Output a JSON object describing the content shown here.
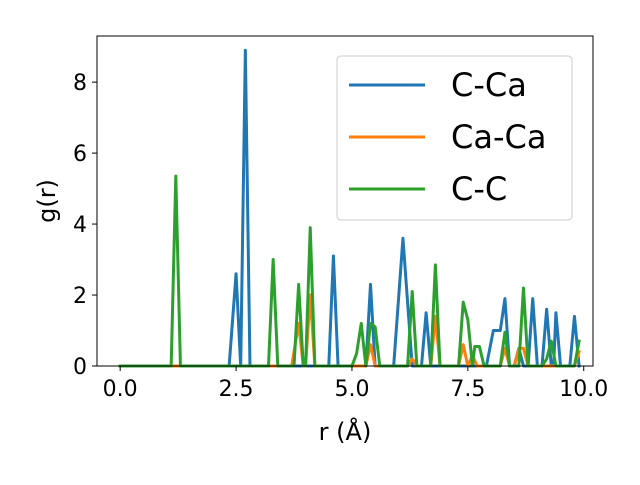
{
  "chart_data": {
    "type": "line",
    "title": "",
    "xlabel": "r (Å)",
    "ylabel": "g(r)",
    "xlim": [
      -0.5,
      10.2
    ],
    "ylim": [
      0,
      9.3
    ],
    "xticks": [
      0.0,
      2.5,
      5.0,
      7.5,
      10.0
    ],
    "xtick_labels": [
      "0.0",
      "2.5",
      "5.0",
      "7.5",
      "10.0"
    ],
    "yticks": [
      0,
      2,
      4,
      6,
      8
    ],
    "ytick_labels": [
      "0",
      "2",
      "4",
      "6",
      "8"
    ],
    "grid": false,
    "legend_position": "top-right",
    "series": [
      {
        "name": "C-Ca",
        "color": "#1f77b4",
        "points": [
          [
            0.0,
            0
          ],
          [
            2.35,
            0
          ],
          [
            2.5,
            2.6
          ],
          [
            2.6,
            0
          ],
          [
            2.7,
            8.9
          ],
          [
            2.8,
            0
          ],
          [
            4.5,
            0
          ],
          [
            4.6,
            3.1
          ],
          [
            4.7,
            0
          ],
          [
            5.3,
            0
          ],
          [
            5.4,
            2.3
          ],
          [
            5.5,
            0
          ],
          [
            5.9,
            0
          ],
          [
            6.1,
            3.6
          ],
          [
            6.3,
            0
          ],
          [
            6.5,
            0
          ],
          [
            6.6,
            1.5
          ],
          [
            6.7,
            0
          ],
          [
            7.9,
            0
          ],
          [
            8.05,
            1.0
          ],
          [
            8.2,
            1.0
          ],
          [
            8.3,
            1.9
          ],
          [
            8.4,
            0
          ],
          [
            8.5,
            0
          ],
          [
            8.6,
            0.5
          ],
          [
            8.7,
            0
          ],
          [
            8.8,
            0
          ],
          [
            8.9,
            1.9
          ],
          [
            9.0,
            0
          ],
          [
            9.1,
            0
          ],
          [
            9.2,
            1.6
          ],
          [
            9.3,
            0
          ],
          [
            9.35,
            0
          ],
          [
            9.4,
            1.5
          ],
          [
            9.5,
            0
          ],
          [
            9.7,
            0
          ],
          [
            9.8,
            1.4
          ],
          [
            9.9,
            0
          ]
        ]
      },
      {
        "name": "Ca-Ca",
        "color": "#ff7f0e",
        "points": [
          [
            0.0,
            0
          ],
          [
            3.7,
            0
          ],
          [
            3.85,
            1.2
          ],
          [
            3.95,
            0
          ],
          [
            4.0,
            0
          ],
          [
            4.1,
            2.0
          ],
          [
            4.2,
            0
          ],
          [
            5.3,
            0
          ],
          [
            5.4,
            0.6
          ],
          [
            5.5,
            0
          ],
          [
            6.2,
            0
          ],
          [
            6.3,
            0.2
          ],
          [
            6.4,
            0
          ],
          [
            6.7,
            0
          ],
          [
            6.8,
            1.4
          ],
          [
            6.9,
            0
          ],
          [
            7.3,
            0
          ],
          [
            7.4,
            0.6
          ],
          [
            7.5,
            0
          ],
          [
            7.6,
            0.3
          ],
          [
            7.7,
            0
          ],
          [
            8.2,
            0
          ],
          [
            8.3,
            0.5
          ],
          [
            8.4,
            0
          ],
          [
            8.5,
            0
          ],
          [
            8.6,
            0.5
          ],
          [
            8.7,
            0.5
          ],
          [
            8.8,
            0
          ],
          [
            9.8,
            0
          ],
          [
            9.9,
            0.4
          ]
        ]
      },
      {
        "name": "C-C",
        "color": "#2ca02c",
        "points": [
          [
            0.0,
            0
          ],
          [
            1.1,
            0
          ],
          [
            1.2,
            5.35
          ],
          [
            1.3,
            0
          ],
          [
            3.2,
            0
          ],
          [
            3.3,
            3.0
          ],
          [
            3.4,
            0
          ],
          [
            3.75,
            0
          ],
          [
            3.85,
            2.3
          ],
          [
            3.95,
            0
          ],
          [
            4.0,
            0
          ],
          [
            4.1,
            3.9
          ],
          [
            4.2,
            0
          ],
          [
            5.0,
            0
          ],
          [
            5.1,
            0.35
          ],
          [
            5.2,
            1.2
          ],
          [
            5.3,
            0
          ],
          [
            5.4,
            1.2
          ],
          [
            5.5,
            1.1
          ],
          [
            5.6,
            0
          ],
          [
            6.2,
            0
          ],
          [
            6.3,
            2.1
          ],
          [
            6.4,
            0
          ],
          [
            6.7,
            0
          ],
          [
            6.8,
            2.85
          ],
          [
            6.9,
            0
          ],
          [
            7.3,
            0
          ],
          [
            7.4,
            1.8
          ],
          [
            7.5,
            1.3
          ],
          [
            7.6,
            0
          ],
          [
            7.65,
            0.55
          ],
          [
            7.75,
            0.55
          ],
          [
            7.85,
            0
          ],
          [
            8.2,
            0
          ],
          [
            8.3,
            0.95
          ],
          [
            8.4,
            0
          ],
          [
            8.6,
            0
          ],
          [
            8.7,
            2.2
          ],
          [
            8.8,
            0
          ],
          [
            9.1,
            0
          ],
          [
            9.2,
            0.2
          ],
          [
            9.3,
            0.7
          ],
          [
            9.4,
            0
          ],
          [
            9.8,
            0
          ],
          [
            9.9,
            0.7
          ]
        ]
      }
    ]
  }
}
